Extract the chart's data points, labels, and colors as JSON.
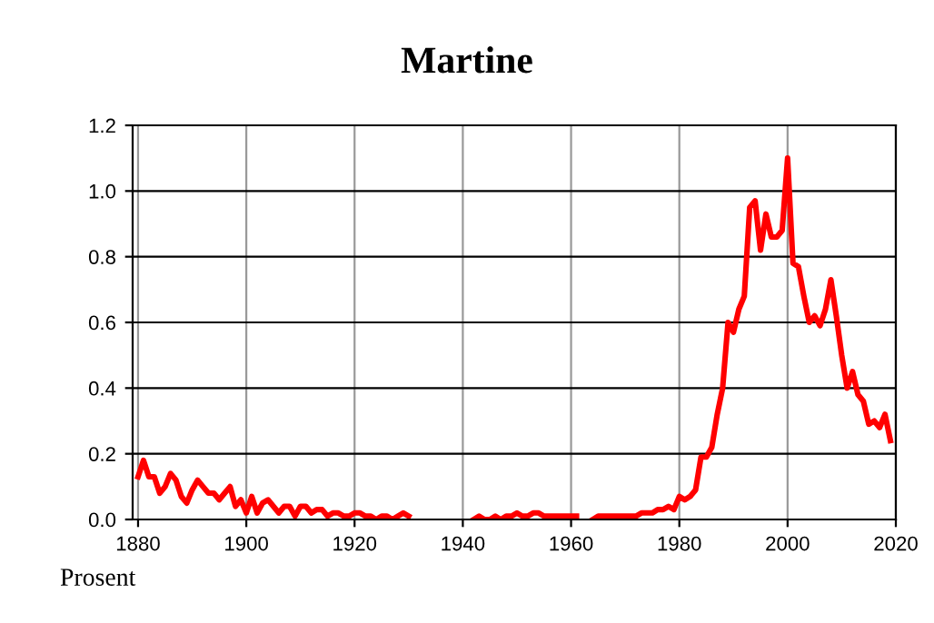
{
  "chart_data": {
    "type": "line",
    "title": "Martine",
    "annotations": [
      "Prosent"
    ],
    "x": [
      1880,
      1881,
      1882,
      1883,
      1884,
      1885,
      1886,
      1887,
      1888,
      1889,
      1890,
      1891,
      1892,
      1893,
      1894,
      1895,
      1896,
      1897,
      1898,
      1899,
      1900,
      1901,
      1902,
      1903,
      1904,
      1905,
      1906,
      1907,
      1908,
      1909,
      1910,
      1911,
      1912,
      1913,
      1914,
      1915,
      1916,
      1917,
      1918,
      1919,
      1920,
      1921,
      1922,
      1923,
      1924,
      1925,
      1926,
      1927,
      1928,
      1929,
      1930,
      1931,
      1942,
      1943,
      1944,
      1945,
      1946,
      1947,
      1948,
      1949,
      1950,
      1951,
      1952,
      1953,
      1954,
      1955,
      1956,
      1957,
      1958,
      1959,
      1960,
      1961,
      1962,
      1964,
      1965,
      1966,
      1967,
      1968,
      1969,
      1970,
      1971,
      1972,
      1973,
      1974,
      1975,
      1976,
      1977,
      1978,
      1979,
      1980,
      1981,
      1982,
      1983,
      1984,
      1985,
      1986,
      1987,
      1988,
      1989,
      1990,
      1991,
      1992,
      1993,
      1994,
      1995,
      1996,
      1997,
      1998,
      1999,
      2000,
      2001,
      2002,
      2003,
      2004,
      2005,
      2006,
      2007,
      2008,
      2009,
      2010,
      2011,
      2012,
      2013,
      2014,
      2015,
      2016,
      2017,
      2018,
      2019
    ],
    "series": [
      {
        "color": "#ff0000",
        "values": [
          0.13,
          0.18,
          0.13,
          0.13,
          0.08,
          0.1,
          0.14,
          0.12,
          0.07,
          0.05,
          0.09,
          0.12,
          0.1,
          0.08,
          0.08,
          0.06,
          0.08,
          0.1,
          0.04,
          0.06,
          0.02,
          0.07,
          0.02,
          0.05,
          0.06,
          0.04,
          0.02,
          0.04,
          0.04,
          0.01,
          0.04,
          0.04,
          0.02,
          0.03,
          0.03,
          0.01,
          0.02,
          0.02,
          0.01,
          0.01,
          0.02,
          0.02,
          0.01,
          0.01,
          0.0,
          0.01,
          0.01,
          0.0,
          0.01,
          0.02,
          0.01,
          null,
          0.0,
          0.01,
          0.0,
          0.0,
          0.01,
          0.0,
          0.01,
          0.01,
          0.02,
          0.01,
          0.01,
          0.02,
          0.02,
          0.01,
          0.01,
          0.01,
          0.01,
          0.01,
          0.01,
          0.01,
          null,
          0.0,
          0.01,
          0.01,
          0.01,
          0.01,
          0.01,
          0.01,
          0.01,
          0.01,
          0.02,
          0.02,
          0.02,
          0.03,
          0.03,
          0.04,
          0.03,
          0.07,
          0.06,
          0.07,
          0.09,
          0.19,
          0.19,
          0.22,
          0.32,
          0.4,
          0.6,
          0.57,
          0.64,
          0.68,
          0.95,
          0.97,
          0.82,
          0.93,
          0.86,
          0.86,
          0.88,
          1.1,
          0.78,
          0.77,
          0.68,
          0.6,
          0.62,
          0.59,
          0.64,
          0.73,
          0.62,
          0.5,
          0.4,
          0.45,
          0.38,
          0.36,
          0.29,
          0.3,
          0.28,
          0.32,
          0.24
        ]
      }
    ],
    "xlim": [
      1879,
      2020
    ],
    "xticks": [
      1880,
      1900,
      1920,
      1940,
      1960,
      1980,
      2000,
      2020
    ],
    "ylim": [
      0,
      1.2
    ],
    "yticks": [
      {
        "value": 0,
        "label": "0.0"
      },
      0.2,
      0.4,
      0.6,
      0.8,
      {
        "value": 1,
        "label": "1.0"
      },
      1.2
    ],
    "grid": true,
    "marker": "none",
    "line_style": "solid"
  }
}
